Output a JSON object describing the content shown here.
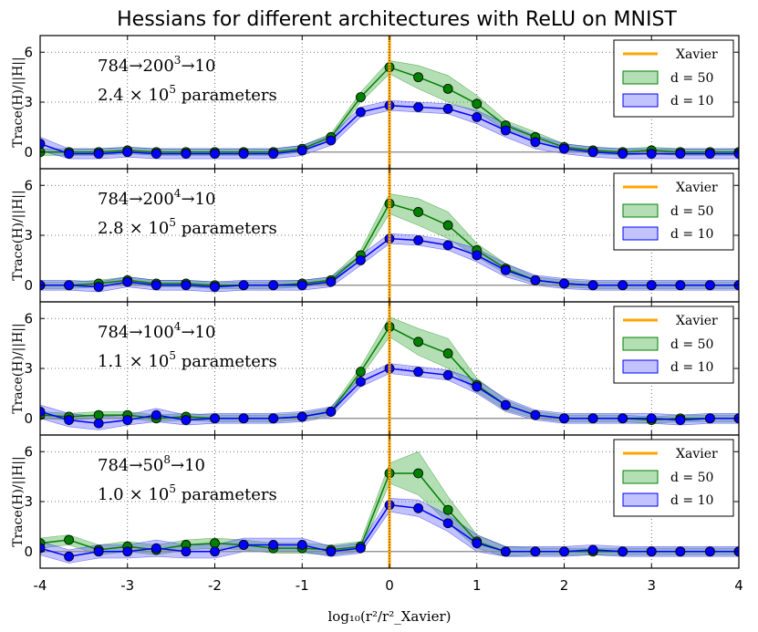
{
  "chart_data": {
    "type": "line",
    "title": "Hessians for different architectures with ReLU on MNIST",
    "xlabel": "log₁₀(r²/r²_Xavier)",
    "ylabel": "Trace(H)/||H||",
    "xlim": [
      -4,
      4
    ],
    "ylim": [
      -1,
      7
    ],
    "xticks": [
      -4,
      -3,
      -2,
      -1,
      0,
      1,
      2,
      3,
      4
    ],
    "yticks": [
      0,
      3,
      6
    ],
    "xavier_x": 0,
    "legend_placement": "top-right",
    "x": [
      -4.0,
      -3.67,
      -3.33,
      -3.0,
      -2.67,
      -2.33,
      -2.0,
      -1.67,
      -1.33,
      -1.0,
      -0.67,
      -0.33,
      0.0,
      0.33,
      0.67,
      1.0,
      1.33,
      1.67,
      2.0,
      2.33,
      2.67,
      3.0,
      3.33,
      3.67,
      4.0
    ],
    "panels": [
      {
        "arch_base": "784→200",
        "arch_exp": "3",
        "arch_tail": "→10",
        "params_mant": "2.4",
        "params_exp": "5",
        "series": [
          {
            "name": "d = 10",
            "color": "#0000ff",
            "values": [
              0.5,
              -0.1,
              -0.1,
              0.0,
              -0.1,
              -0.1,
              -0.1,
              -0.1,
              -0.1,
              0.1,
              0.7,
              2.4,
              2.8,
              2.7,
              2.6,
              2.1,
              1.3,
              0.6,
              0.2,
              0.0,
              -0.1,
              -0.1,
              -0.1,
              -0.1,
              -0.1
            ],
            "spread": [
              0.4,
              0.3,
              0.3,
              0.3,
              0.3,
              0.3,
              0.3,
              0.3,
              0.3,
              0.3,
              0.3,
              0.3,
              0.3,
              0.3,
              0.3,
              0.4,
              0.4,
              0.4,
              0.3,
              0.3,
              0.3,
              0.3,
              0.3,
              0.3,
              0.3
            ]
          },
          {
            "name": "d = 50",
            "color": "#008000",
            "values": [
              0.0,
              0.0,
              0.0,
              0.1,
              0.0,
              0.0,
              0.0,
              0.0,
              0.0,
              0.2,
              0.9,
              3.3,
              5.1,
              4.5,
              3.8,
              2.9,
              1.6,
              0.9,
              0.3,
              0.1,
              0.0,
              0.1,
              0.0,
              0.0,
              0.0
            ],
            "spread": [
              0.2,
              0.2,
              0.2,
              0.2,
              0.2,
              0.2,
              0.2,
              0.2,
              0.2,
              0.2,
              0.2,
              0.3,
              0.4,
              0.7,
              0.8,
              0.5,
              0.3,
              0.3,
              0.2,
              0.2,
              0.2,
              0.2,
              0.2,
              0.2,
              0.2
            ]
          }
        ]
      },
      {
        "arch_base": "784→200",
        "arch_exp": "4",
        "arch_tail": "→10",
        "params_mant": "2.8",
        "params_exp": "5",
        "series": [
          {
            "name": "d = 10",
            "color": "#0000ff",
            "values": [
              0.0,
              0.0,
              -0.1,
              0.2,
              0.0,
              0.0,
              -0.1,
              0.0,
              0.0,
              0.0,
              0.2,
              1.5,
              2.8,
              2.7,
              2.4,
              1.8,
              0.9,
              0.3,
              0.1,
              0.0,
              0.0,
              0.0,
              0.0,
              0.0,
              0.0
            ],
            "spread": [
              0.3,
              0.3,
              0.3,
              0.3,
              0.3,
              0.3,
              0.3,
              0.3,
              0.3,
              0.3,
              0.3,
              0.3,
              0.3,
              0.3,
              0.3,
              0.4,
              0.4,
              0.3,
              0.3,
              0.3,
              0.3,
              0.3,
              0.3,
              0.3,
              0.3
            ]
          },
          {
            "name": "d = 50",
            "color": "#008000",
            "values": [
              0.0,
              0.0,
              0.1,
              0.3,
              0.1,
              0.1,
              0.0,
              0.0,
              0.0,
              0.1,
              0.3,
              1.8,
              4.9,
              4.4,
              3.6,
              2.1,
              1.0,
              0.3,
              0.1,
              0.0,
              0.0,
              0.0,
              0.0,
              0.0,
              0.0
            ],
            "spread": [
              0.2,
              0.2,
              0.2,
              0.2,
              0.2,
              0.2,
              0.2,
              0.2,
              0.2,
              0.2,
              0.2,
              0.3,
              0.6,
              0.8,
              0.8,
              0.4,
              0.3,
              0.2,
              0.2,
              0.2,
              0.2,
              0.2,
              0.2,
              0.2,
              0.2
            ]
          }
        ]
      },
      {
        "arch_base": "784→100",
        "arch_exp": "4",
        "arch_tail": "→10",
        "params_mant": "1.1",
        "params_exp": "5",
        "series": [
          {
            "name": "d = 10",
            "color": "#0000ff",
            "values": [
              0.4,
              -0.1,
              -0.3,
              -0.1,
              0.2,
              -0.1,
              0.0,
              0.0,
              0.0,
              0.1,
              0.4,
              2.2,
              3.0,
              2.8,
              2.6,
              1.9,
              0.8,
              0.2,
              0.0,
              0.0,
              0.0,
              0.0,
              -0.1,
              0.0,
              0.0
            ],
            "spread": [
              0.4,
              0.4,
              0.4,
              0.3,
              0.4,
              0.3,
              0.3,
              0.3,
              0.3,
              0.3,
              0.3,
              0.3,
              0.3,
              0.3,
              0.3,
              0.4,
              0.4,
              0.3,
              0.3,
              0.3,
              0.3,
              0.3,
              0.3,
              0.3,
              0.3
            ]
          },
          {
            "name": "d = 50",
            "color": "#008000",
            "values": [
              0.2,
              0.1,
              0.2,
              0.2,
              0.0,
              0.1,
              0.0,
              0.0,
              0.0,
              0.1,
              0.4,
              2.8,
              5.5,
              4.6,
              3.9,
              2.0,
              0.8,
              0.2,
              0.0,
              0.0,
              0.0,
              -0.1,
              0.0,
              0.0,
              0.0
            ],
            "spread": [
              0.2,
              0.2,
              0.2,
              0.2,
              0.2,
              0.2,
              0.2,
              0.2,
              0.2,
              0.2,
              0.2,
              0.3,
              0.6,
              0.8,
              0.9,
              0.4,
              0.3,
              0.2,
              0.2,
              0.2,
              0.2,
              0.2,
              0.2,
              0.2,
              0.2
            ]
          }
        ]
      },
      {
        "arch_base": "784→50",
        "arch_exp": "8",
        "arch_tail": "→10",
        "params_mant": "1.0",
        "params_exp": "5",
        "series": [
          {
            "name": "d = 10",
            "color": "#0000ff",
            "values": [
              0.2,
              -0.3,
              0.0,
              0.0,
              0.2,
              0.0,
              0.0,
              0.4,
              0.4,
              0.4,
              0.0,
              0.2,
              2.8,
              2.6,
              1.7,
              0.5,
              0.0,
              0.0,
              0.0,
              0.1,
              0.0,
              0.0,
              0.0,
              0.0,
              0.0
            ],
            "spread": [
              0.4,
              0.4,
              0.4,
              0.4,
              0.5,
              0.4,
              0.4,
              0.4,
              0.4,
              0.4,
              0.3,
              0.3,
              0.4,
              0.5,
              0.5,
              0.5,
              0.3,
              0.3,
              0.3,
              0.3,
              0.3,
              0.3,
              0.3,
              0.3,
              0.3
            ]
          },
          {
            "name": "d = 50",
            "color": "#008000",
            "values": [
              0.5,
              0.7,
              0.1,
              0.3,
              0.1,
              0.4,
              0.5,
              0.4,
              0.2,
              0.2,
              0.1,
              0.3,
              4.7,
              4.7,
              2.5,
              0.6,
              0.0,
              0.0,
              0.0,
              0.0,
              0.0,
              0.0,
              0.0,
              0.0,
              0.0
            ],
            "spread": [
              0.3,
              0.3,
              0.3,
              0.3,
              0.3,
              0.3,
              0.3,
              0.3,
              0.3,
              0.3,
              0.3,
              0.3,
              0.6,
              1.3,
              0.8,
              0.4,
              0.3,
              0.2,
              0.2,
              0.2,
              0.2,
              0.2,
              0.2,
              0.2,
              0.2
            ]
          }
        ]
      }
    ],
    "legend": [
      "Xavier",
      "d = 50",
      "d = 10"
    ],
    "params_prefix": "× 10",
    "params_suffix": " parameters"
  }
}
